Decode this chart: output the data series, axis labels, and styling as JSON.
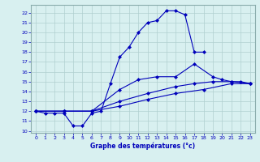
{
  "xlabel": "Graphe des températures (°c)",
  "xlim": [
    -0.5,
    23.5
  ],
  "ylim": [
    9.8,
    22.8
  ],
  "yticks": [
    10,
    11,
    12,
    13,
    14,
    15,
    16,
    17,
    18,
    19,
    20,
    21,
    22
  ],
  "xticks": [
    0,
    1,
    2,
    3,
    4,
    5,
    6,
    7,
    8,
    9,
    10,
    11,
    12,
    13,
    14,
    15,
    16,
    17,
    18,
    19,
    20,
    21,
    22,
    23
  ],
  "bg_color": "#d8f0f0",
  "line_color": "#0000bb",
  "grid_color": "#b0d0d0",
  "lines": [
    {
      "x": [
        0,
        1,
        2,
        3,
        4,
        5,
        6,
        7,
        8,
        9,
        10,
        11,
        12,
        13,
        14,
        15,
        16,
        17,
        18
      ],
      "y": [
        12,
        11.8,
        11.8,
        11.8,
        10.5,
        10.5,
        11.8,
        12.0,
        14.8,
        17.5,
        18.5,
        20.0,
        21.0,
        21.2,
        22.2,
        22.2,
        21.8,
        18.0,
        18.0
      ]
    },
    {
      "x": [
        0,
        3,
        6,
        9,
        11,
        13,
        15,
        17,
        19,
        20,
        21,
        22,
        23
      ],
      "y": [
        12,
        12,
        12,
        14.2,
        15.2,
        15.5,
        15.5,
        16.8,
        15.5,
        15.2,
        15.0,
        15.0,
        14.8
      ]
    },
    {
      "x": [
        0,
        3,
        6,
        9,
        12,
        15,
        17,
        19,
        21,
        23
      ],
      "y": [
        12,
        12,
        12,
        13.0,
        13.8,
        14.5,
        14.8,
        15.0,
        15.0,
        14.8
      ]
    },
    {
      "x": [
        0,
        3,
        6,
        9,
        12,
        15,
        18,
        21,
        23
      ],
      "y": [
        12,
        12,
        12,
        12.5,
        13.2,
        13.8,
        14.2,
        14.8,
        14.8
      ]
    }
  ]
}
